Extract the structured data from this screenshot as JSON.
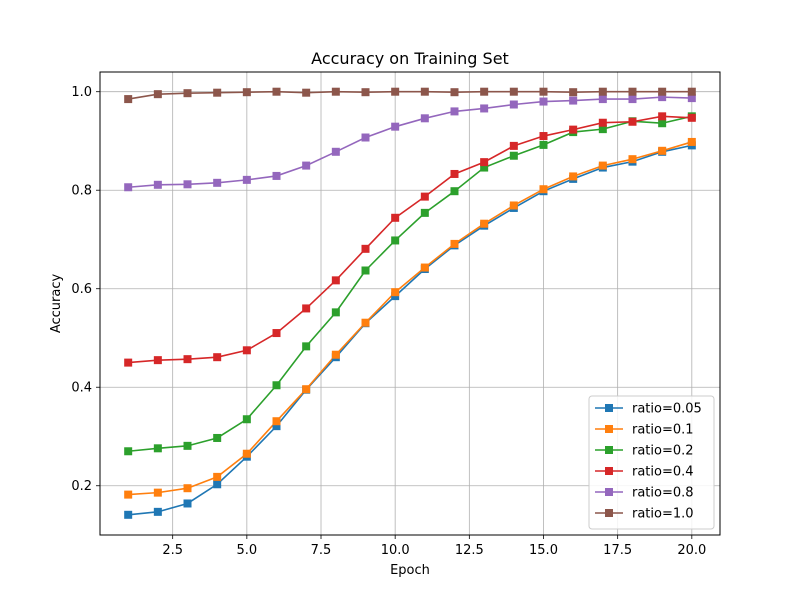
{
  "chart_data": {
    "type": "line",
    "title": "Accuracy on Training Set",
    "xlabel": "Epoch",
    "ylabel": "Accuracy",
    "xlim": [
      0.05,
      20.95
    ],
    "ylim": [
      0.1,
      1.04
    ],
    "x_ticks": [
      2.5,
      5.0,
      7.5,
      10.0,
      12.5,
      15.0,
      17.5,
      20.0
    ],
    "x_tick_labels": [
      "2.5",
      "5.0",
      "7.5",
      "10.0",
      "12.5",
      "15.0",
      "17.5",
      "20.0"
    ],
    "y_ticks": [
      0.2,
      0.4,
      0.6,
      0.8,
      1.0
    ],
    "y_tick_labels": [
      "0.2",
      "0.4",
      "0.6",
      "0.8",
      "1.0"
    ],
    "grid": true,
    "legend_position": "lower-right",
    "marker": "square",
    "x": [
      1,
      2,
      3,
      4,
      5,
      6,
      7,
      8,
      9,
      10,
      11,
      12,
      13,
      14,
      15,
      16,
      17,
      18,
      19,
      20
    ],
    "series": [
      {
        "name": "ratio=0.05",
        "color": "#1f77b4",
        "values": [
          0.141,
          0.147,
          0.164,
          0.203,
          0.259,
          0.321,
          0.395,
          0.461,
          0.53,
          0.585,
          0.64,
          0.688,
          0.728,
          0.764,
          0.798,
          0.823,
          0.846,
          0.858,
          0.878,
          0.891
        ]
      },
      {
        "name": "ratio=0.1",
        "color": "#ff7f0e",
        "values": [
          0.182,
          0.186,
          0.195,
          0.218,
          0.265,
          0.331,
          0.396,
          0.466,
          0.531,
          0.593,
          0.643,
          0.691,
          0.732,
          0.769,
          0.802,
          0.828,
          0.85,
          0.863,
          0.88,
          0.898
        ]
      },
      {
        "name": "ratio=0.2",
        "color": "#2ca02c",
        "values": [
          0.27,
          0.276,
          0.281,
          0.297,
          0.335,
          0.404,
          0.483,
          0.552,
          0.637,
          0.698,
          0.754,
          0.798,
          0.846,
          0.87,
          0.892,
          0.918,
          0.924,
          0.94,
          0.936,
          0.95
        ]
      },
      {
        "name": "ratio=0.4",
        "color": "#d62728",
        "values": [
          0.45,
          0.455,
          0.457,
          0.461,
          0.475,
          0.51,
          0.56,
          0.617,
          0.681,
          0.744,
          0.787,
          0.833,
          0.857,
          0.89,
          0.91,
          0.923,
          0.937,
          0.939,
          0.95,
          0.947
        ]
      },
      {
        "name": "ratio=0.8",
        "color": "#9467bd",
        "values": [
          0.806,
          0.811,
          0.812,
          0.815,
          0.821,
          0.829,
          0.85,
          0.878,
          0.907,
          0.929,
          0.946,
          0.96,
          0.966,
          0.974,
          0.98,
          0.982,
          0.985,
          0.985,
          0.989,
          0.987
        ]
      },
      {
        "name": "ratio=1.0",
        "color": "#8c564b",
        "values": [
          0.985,
          0.995,
          0.997,
          0.998,
          0.999,
          1.0,
          0.998,
          1.0,
          0.999,
          1.0,
          1.0,
          0.999,
          1.0,
          1.0,
          1.0,
          0.999,
          1.0,
          1.0,
          1.0,
          1.0
        ]
      }
    ]
  }
}
